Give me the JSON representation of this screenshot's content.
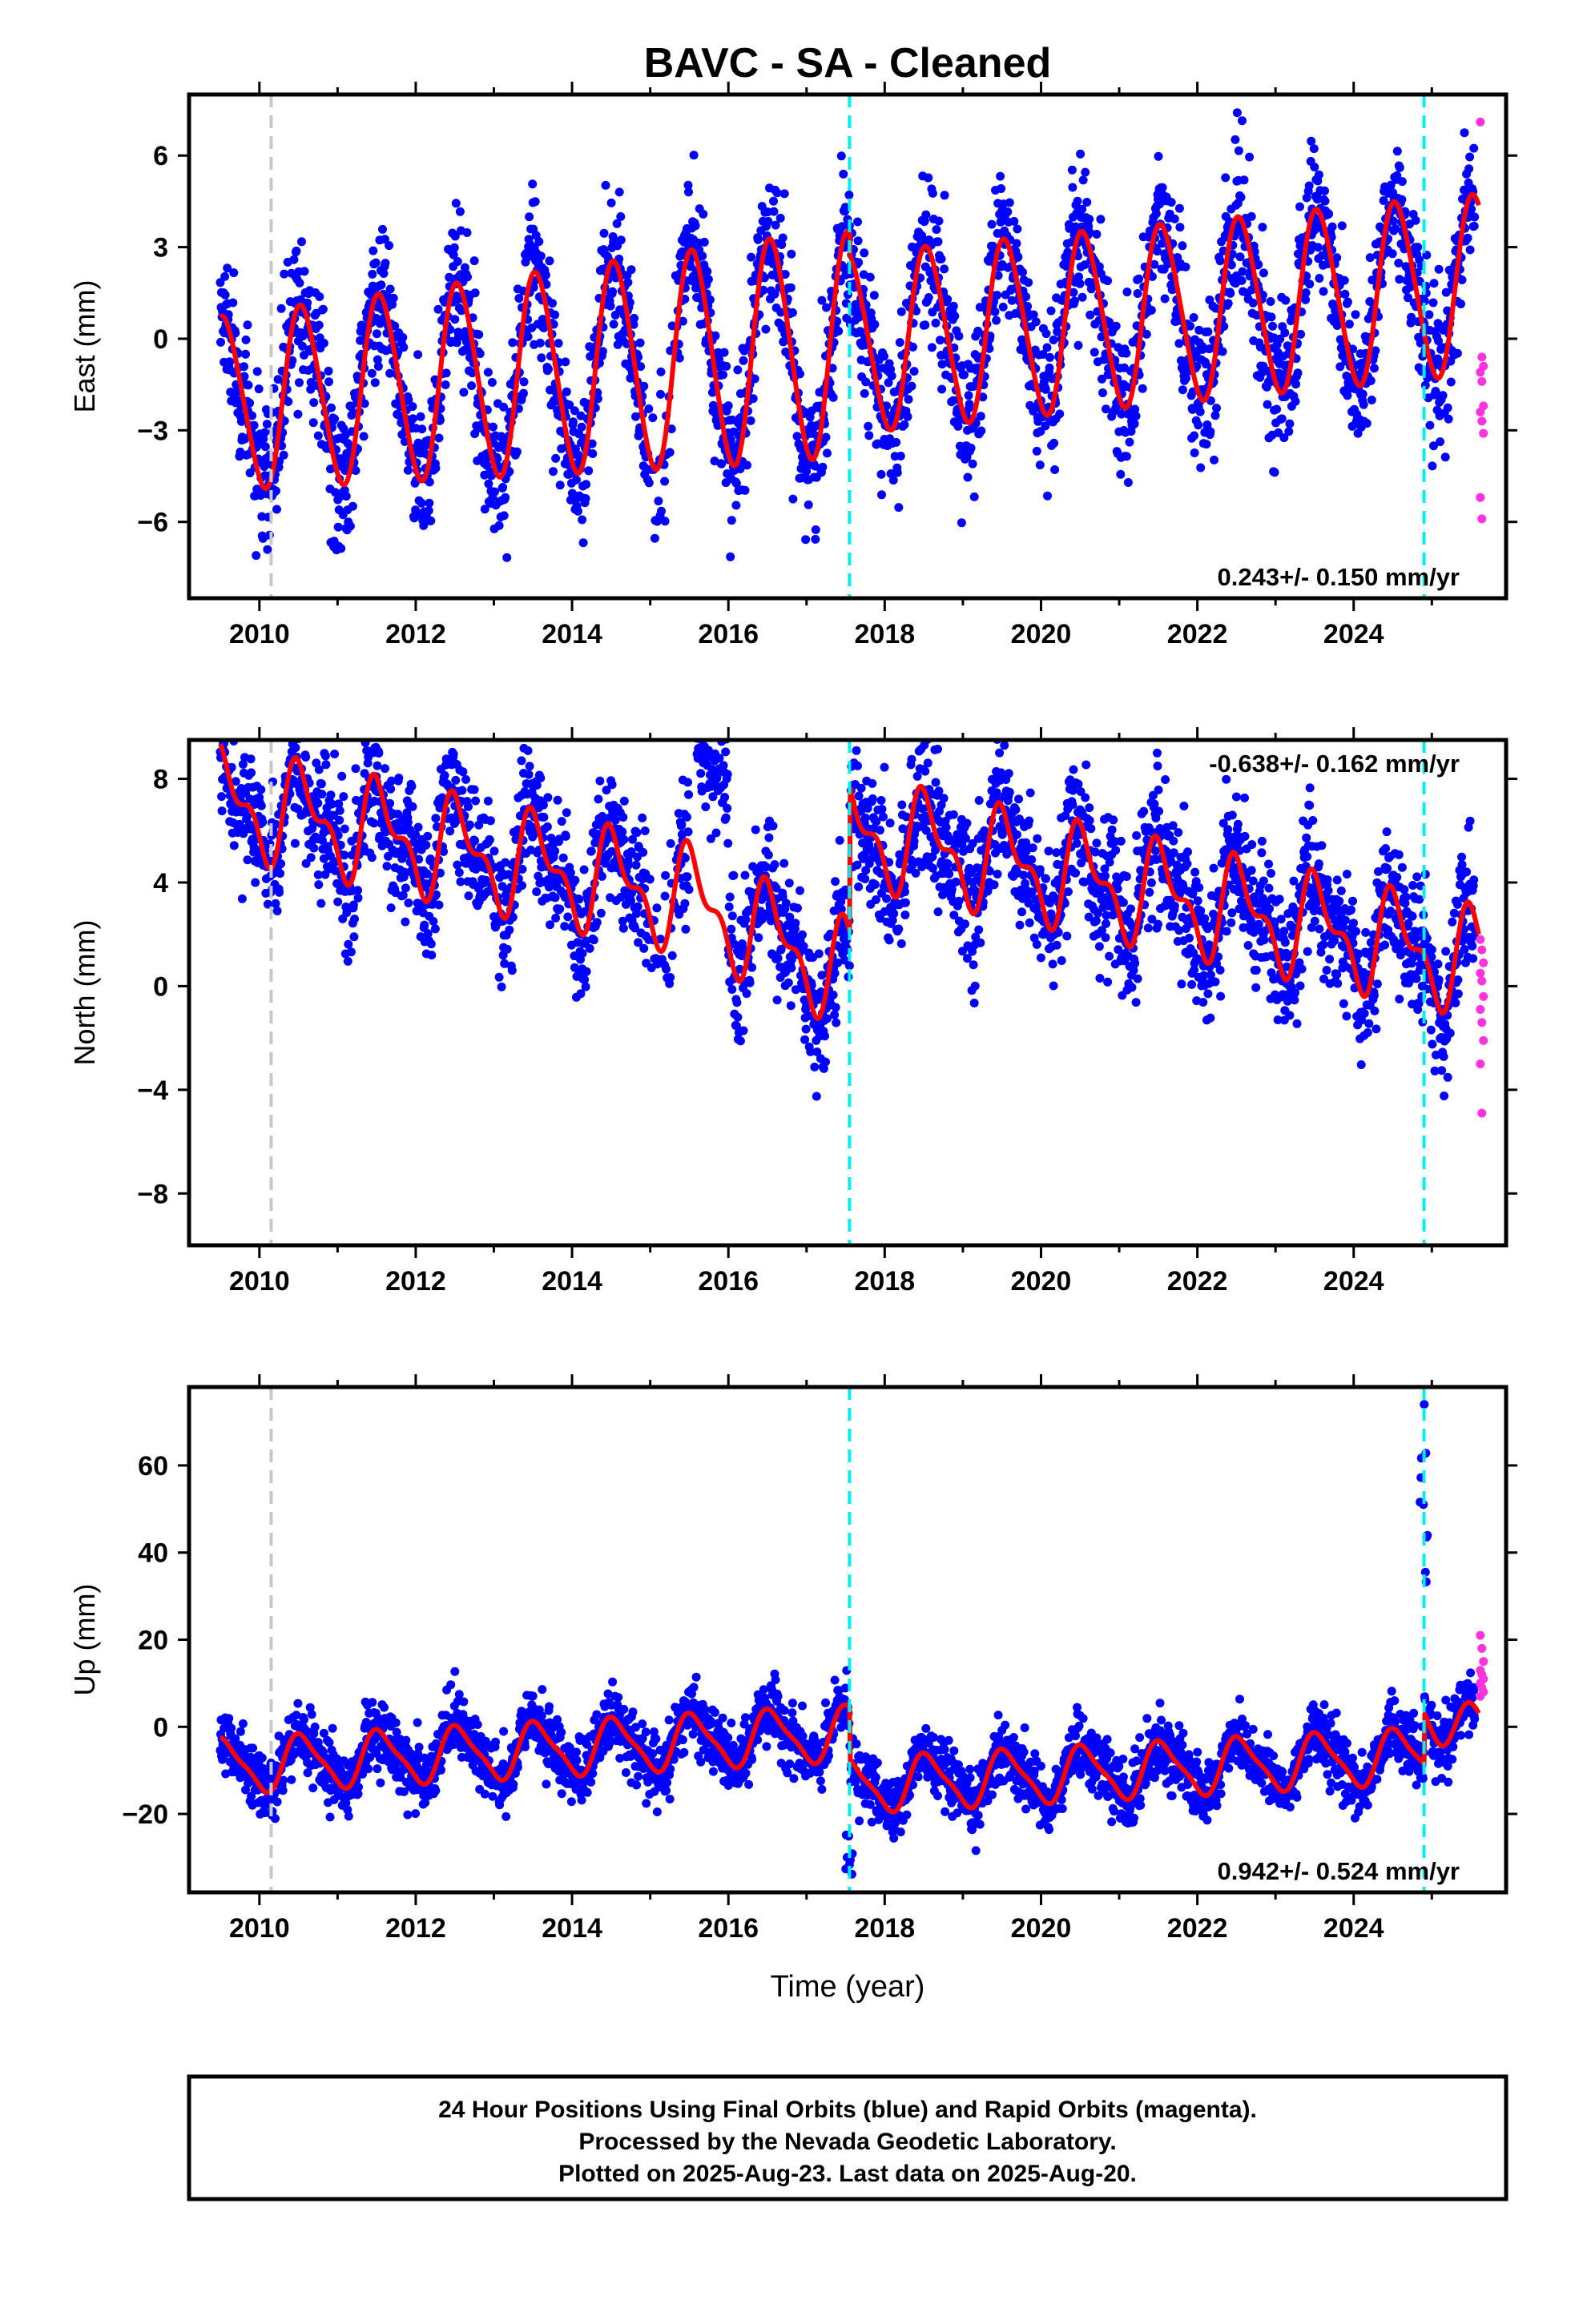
{
  "title": "BAVC  - SA - Cleaned",
  "colors": {
    "final_orbits": "#0000ff",
    "rapid_orbits": "#ff33dd",
    "model": "#ff0000",
    "equipment_change": "#00eeee",
    "other_event": "#c8c8c8"
  },
  "x_axis": {
    "label": "Time (year)",
    "range": [
      2009.1,
      2025.95
    ],
    "tick_labels": [
      "2010",
      "2012",
      "2014",
      "2016",
      "2018",
      "2020",
      "2022",
      "2024"
    ]
  },
  "events": [
    {
      "year": 2010.15,
      "type": "other_event"
    },
    {
      "year": 2017.55,
      "type": "equipment_change"
    },
    {
      "year": 2024.9,
      "type": "equipment_change"
    }
  ],
  "chart_data": [
    {
      "type": "scatter",
      "component": "East",
      "ylabel": "East (mm)",
      "ylim": [
        -8.5,
        8
      ],
      "yticks": [
        -6,
        -3,
        0,
        3,
        6
      ],
      "rate_label": "0.243+/- 0.150 mm/yr",
      "rate_position": "bottom-right",
      "model": {
        "offset": -0.3,
        "annual_amp": 2.8,
        "annual_amp_growth": 0.12,
        "semiannual_amp": 0.3,
        "trend": 0.243,
        "noise": 1.2
      },
      "rapid_orbit_values": [
        7.1,
        -0.6,
        -0.9,
        -1.1,
        -1.4,
        -2.2,
        -2.4,
        -2.7,
        -3.1,
        -5.2,
        -5.9
      ]
    },
    {
      "type": "scatter",
      "component": "North",
      "ylabel": "North (mm)",
      "ylim": [
        -10,
        9.5
      ],
      "yticks": [
        -8,
        -4,
        0,
        4,
        8
      ],
      "rate_label": "-0.638+/- 0.162 mm/yr",
      "rate_position": "top-right",
      "model": {
        "offset": 2.4,
        "annual_amp": 1.7,
        "semiannual_amp": 0.9,
        "trend": -0.638,
        "noise": 1.3,
        "offset_2015_5": 5.5,
        "offset_2017_55": 4.0
      },
      "rapid_orbit_values": [
        1.8,
        1.4,
        0.9,
        0.5,
        0.2,
        -0.4,
        -0.9,
        -1.4,
        -2.1,
        -3.0,
        -4.9
      ]
    },
    {
      "type": "scatter",
      "component": "Up",
      "ylabel": "Up (mm)",
      "ylim": [
        -38,
        78
      ],
      "yticks": [
        -20,
        0,
        20,
        40,
        60
      ],
      "rate_label": "0.942+/- 0.524 mm/yr",
      "rate_position": "bottom-right",
      "model": {
        "offset": -2,
        "annual_amp": 6,
        "semiannual_amp": 1.5,
        "trend": 0.942,
        "noise": 3.5,
        "offset_2017_55": -12,
        "offset_2024_9": 12
      },
      "rapid_orbit_values": [
        21,
        18,
        15,
        13,
        12,
        11,
        10,
        9,
        8,
        7
      ]
    }
  ],
  "footer": {
    "line1": "24 Hour Positions Using Final Orbits (blue) and Rapid Orbits (magenta).",
    "line2": "Processed by the Nevada Geodetic Laboratory.",
    "line3": "Plotted on 2025-Aug-23. Last data on 2025-Aug-20."
  }
}
